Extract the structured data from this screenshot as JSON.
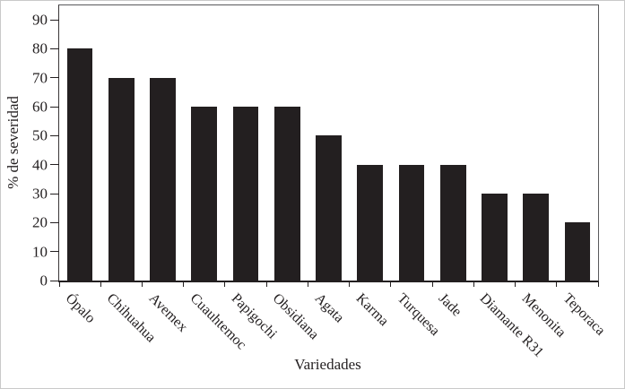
{
  "chart_data": {
    "type": "bar",
    "title": "",
    "xlabel": "Variedades",
    "ylabel": "% de severidad",
    "categories": [
      "Ópalo",
      "Chihuahua",
      "Avemex",
      "Cuauhtemoc",
      "Papigochi",
      "Obsidiana",
      "Agata",
      "Karma",
      "Turquesa",
      "Jade",
      "Diamante R31",
      "Menonita",
      "Teporaca"
    ],
    "values": [
      80,
      70,
      70,
      60,
      60,
      60,
      50,
      40,
      40,
      40,
      30,
      30,
      20
    ],
    "yticks": [
      0,
      10,
      20,
      30,
      40,
      50,
      60,
      70,
      80,
      90
    ],
    "ylim": [
      0,
      95
    ],
    "grid": false,
    "legend": null,
    "bar_color": "#231f20",
    "axis_color": "#231f20",
    "frame_color": "#59595b"
  }
}
